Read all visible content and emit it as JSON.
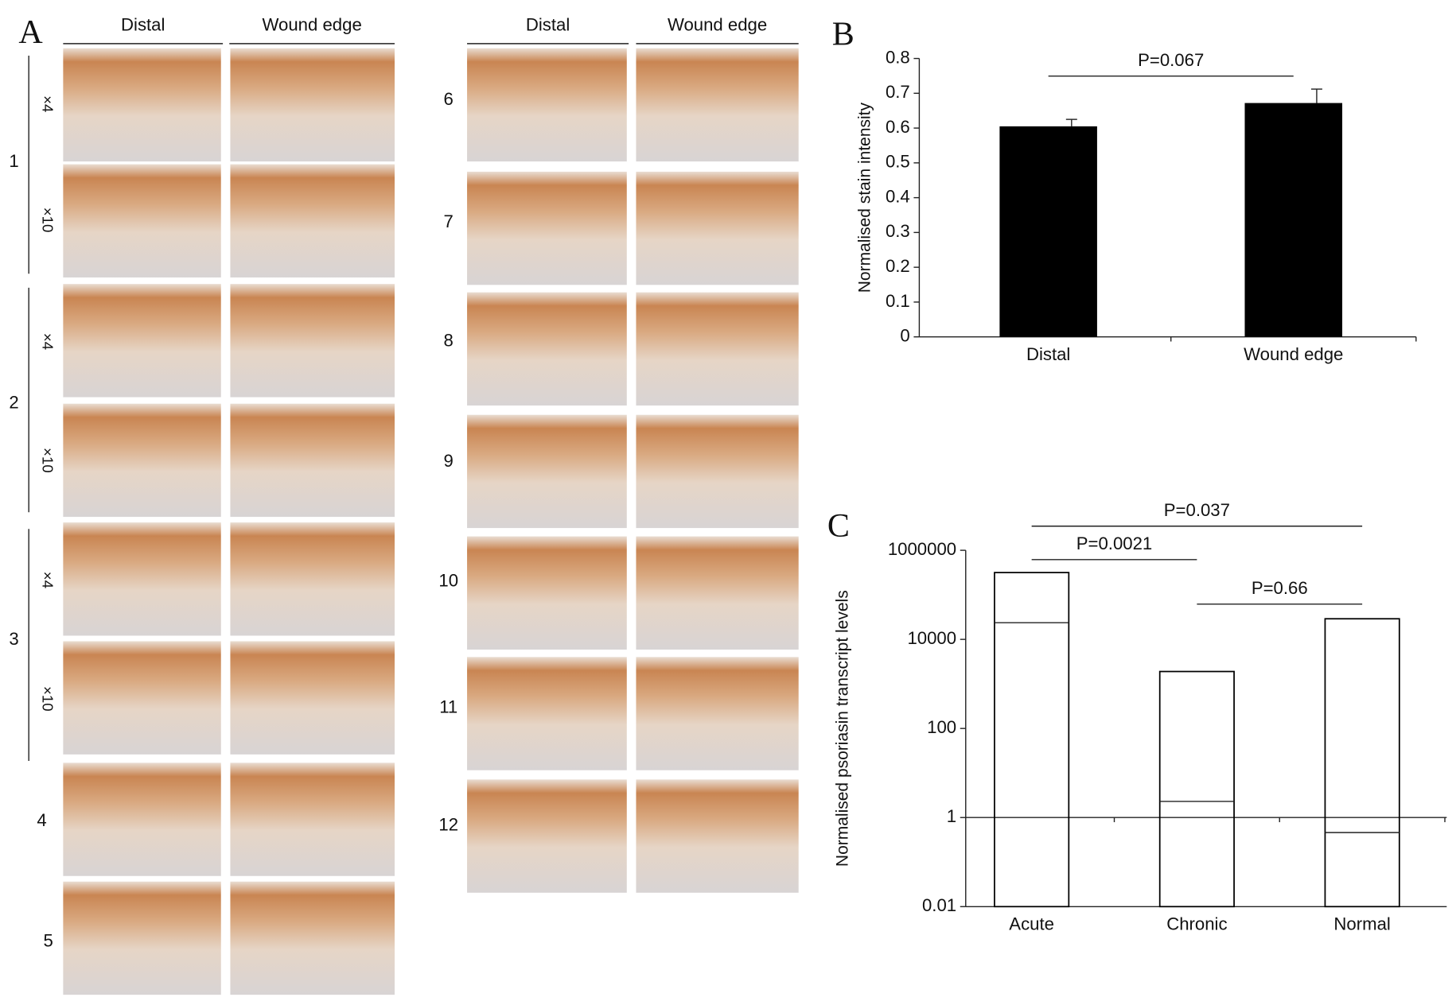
{
  "panel_a": {
    "label": "A",
    "column_headers": [
      "Distal",
      "Wound edge",
      "Distal",
      "Wound edge"
    ],
    "samples": [
      "1",
      "2",
      "3",
      "4",
      "5",
      "6",
      "7",
      "8",
      "9",
      "10",
      "11",
      "12"
    ],
    "magnifications": [
      "×4",
      "×10",
      "×4",
      "×10",
      "×4",
      "×10"
    ]
  },
  "chart_data": [
    {
      "type": "bar",
      "panel_label": "B",
      "y_label": "Normalised stain intensity",
      "categories": [
        "Distal",
        "Wound edge"
      ],
      "values": [
        0.605,
        0.672
      ],
      "errors": [
        0.02,
        0.04
      ],
      "color": "#000000",
      "ylim": [
        0,
        0.8
      ],
      "yticks": [
        0,
        0.1,
        0.2,
        0.3,
        0.4,
        0.5,
        0.6,
        0.7,
        0.8
      ],
      "annotations": [
        {
          "text": "P=0.067",
          "between": [
            0,
            1
          ]
        }
      ]
    },
    {
      "type": "range",
      "panel_label": "C",
      "y_label": "Normalised psoriasin transcript levels",
      "log_scale": true,
      "categories": [
        "Acute",
        "Chronic",
        "Normal"
      ],
      "low": [
        0.01,
        0.01,
        0.01
      ],
      "median": [
        23700,
        2.3,
        0.46
      ],
      "high": [
        316000,
        1900,
        29000
      ],
      "color": "#000000",
      "x_axis_at": 1,
      "ylim": [
        0.01,
        1000000
      ],
      "yticks": [
        0.01,
        1,
        100,
        10000,
        1000000
      ],
      "annotations": [
        {
          "text": "P=0.0021",
          "between": [
            0,
            1
          ]
        },
        {
          "text": "P=0.037",
          "between": [
            0,
            2
          ]
        },
        {
          "text": "P=0.66",
          "between": [
            1,
            2
          ]
        }
      ]
    }
  ]
}
